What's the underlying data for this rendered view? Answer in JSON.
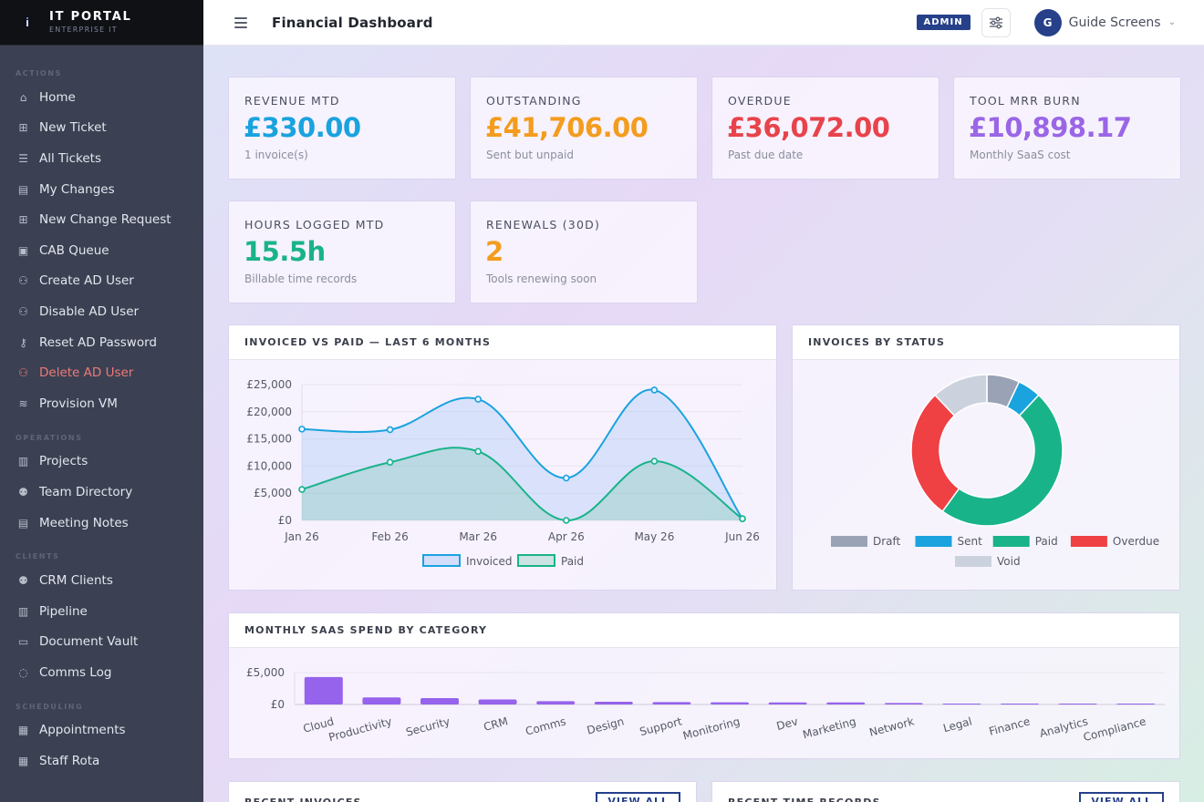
{
  "brand": {
    "title": "IT PORTAL",
    "subtitle": "ENTERPRISE IT"
  },
  "sidebar": {
    "sections": [
      {
        "label": "ACTIONS",
        "items": [
          {
            "label": "Home",
            "icon": "home-icon"
          },
          {
            "label": "New Ticket",
            "icon": "plus-square-icon"
          },
          {
            "label": "All Tickets",
            "icon": "list-icon"
          },
          {
            "label": "My Changes",
            "icon": "clipboard-icon"
          },
          {
            "label": "New Change Request",
            "icon": "plus-square-icon"
          },
          {
            "label": "CAB Queue",
            "icon": "clipboard-check-icon"
          },
          {
            "label": "Create AD User",
            "icon": "user-plus-icon"
          },
          {
            "label": "Disable AD User",
            "icon": "user-lock-icon"
          },
          {
            "label": "Reset AD Password",
            "icon": "key-icon"
          },
          {
            "label": "Delete AD User",
            "icon": "user-minus-icon",
            "danger": true
          },
          {
            "label": "Provision VM",
            "icon": "database-icon"
          }
        ]
      },
      {
        "label": "OPERATIONS",
        "items": [
          {
            "label": "Projects",
            "icon": "kanban-icon"
          },
          {
            "label": "Team Directory",
            "icon": "users-icon"
          },
          {
            "label": "Meeting Notes",
            "icon": "notes-icon"
          }
        ]
      },
      {
        "label": "CLIENTS",
        "items": [
          {
            "label": "CRM Clients",
            "icon": "users-icon"
          },
          {
            "label": "Pipeline",
            "icon": "pipeline-icon"
          },
          {
            "label": "Document Vault",
            "icon": "folder-icon"
          },
          {
            "label": "Comms Log",
            "icon": "chat-icon"
          }
        ]
      },
      {
        "label": "SCHEDULING",
        "items": [
          {
            "label": "Appointments",
            "icon": "calendar-icon"
          },
          {
            "label": "Staff Rota",
            "icon": "calendar-grid-icon"
          }
        ]
      }
    ]
  },
  "header": {
    "title": "Financial Dashboard",
    "role_badge": "ADMIN",
    "user": {
      "initial": "G",
      "name": "Guide Screens"
    }
  },
  "kpis": [
    {
      "label": "REVENUE MTD",
      "value": "£330.00",
      "sub": "1 invoice(s)",
      "color": "#1aa3de"
    },
    {
      "label": "OUTSTANDING",
      "value": "£41,706.00",
      "sub": "Sent but unpaid",
      "color": "#f39c1e"
    },
    {
      "label": "OVERDUE",
      "value": "£36,072.00",
      "sub": "Past due date",
      "color": "#e8434b"
    },
    {
      "label": "TOOL MRR BURN",
      "value": "£10,898.17",
      "sub": "Monthly SaaS cost",
      "color": "#9a66e6"
    },
    {
      "label": "HOURS LOGGED MTD",
      "value": "15.5h",
      "sub": "Billable time records",
      "color": "#19b38a"
    },
    {
      "label": "RENEWALS (30D)",
      "value": "2",
      "sub": "Tools renewing soon",
      "color": "#f39c1e"
    }
  ],
  "panels": {
    "invoiced_title": "INVOICED VS PAID — LAST 6 MONTHS",
    "status_title": "INVOICES BY STATUS",
    "saas_title": "MONTHLY SAAS SPEND BY CATEGORY",
    "recent_invoices_title": "RECENT INVOICES",
    "recent_time_title": "RECENT TIME RECORDS",
    "view_all": "VIEW ALL"
  },
  "chart_data": [
    {
      "type": "line",
      "title": "INVOICED VS PAID — LAST 6 MONTHS",
      "categories": [
        "Jan 26",
        "Feb 26",
        "Mar 26",
        "Apr 26",
        "May 26",
        "Jun 26"
      ],
      "series": [
        {
          "name": "Invoiced",
          "values": [
            16800,
            16700,
            22300,
            7800,
            24000,
            300
          ],
          "color": "#1aa3de"
        },
        {
          "name": "Paid",
          "values": [
            5700,
            10700,
            12700,
            0,
            10900,
            300
          ],
          "color": "#19b38a"
        }
      ],
      "ylim": [
        0,
        25000
      ],
      "y_ticks": [
        "£0",
        "£5,000",
        "£10,000",
        "£15,000",
        "£20,000",
        "£25,000"
      ],
      "legend": "bottom",
      "grid": true
    },
    {
      "type": "pie",
      "title": "INVOICES BY STATUS",
      "labels": [
        "Draft",
        "Sent",
        "Paid",
        "Overdue",
        "Void"
      ],
      "values": [
        7,
        5,
        48,
        28,
        12
      ],
      "colors": [
        "#9aa3b5",
        "#1aa3de",
        "#19b38a",
        "#ef4044",
        "#cbd2de"
      ],
      "legend": "bottom"
    },
    {
      "type": "bar",
      "title": "MONTHLY SAAS SPEND BY CATEGORY",
      "categories": [
        "Cloud",
        "Productivity",
        "Security",
        "CRM",
        "Comms",
        "Design",
        "Support",
        "Monitoring",
        "Dev",
        "Marketing",
        "Network",
        "Legal",
        "Finance",
        "Analytics",
        "Compliance"
      ],
      "values": [
        4300,
        1100,
        1000,
        780,
        520,
        430,
        380,
        340,
        330,
        320,
        240,
        150,
        120,
        110,
        50
      ],
      "color": "#8d57ea",
      "ylim": [
        0,
        5000
      ],
      "y_ticks": [
        "£0",
        "£5,000"
      ],
      "grid": true
    }
  ]
}
